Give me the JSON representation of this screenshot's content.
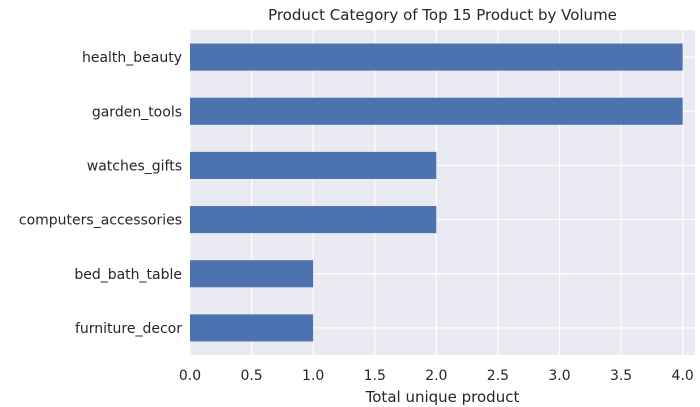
{
  "chart_data": {
    "type": "bar",
    "orientation": "horizontal",
    "title": "Product Category of Top 15 Product by Volume",
    "xlabel": "Total unique product",
    "ylabel": "",
    "categories": [
      "health_beauty",
      "garden_tools",
      "watches_gifts",
      "computers_accessories",
      "bed_bath_table",
      "furniture_decor"
    ],
    "values": [
      4,
      4,
      2,
      2,
      1,
      1
    ],
    "xlim": [
      0,
      4.1
    ],
    "xticks": [
      "0.0",
      "0.5",
      "1.0",
      "1.5",
      "2.0",
      "2.5",
      "3.0",
      "3.5",
      "4.0"
    ],
    "grid": true,
    "colors": {
      "bar": "#4c72b0",
      "plot_bg": "#eaeaf2",
      "grid": "#ffffff"
    }
  }
}
